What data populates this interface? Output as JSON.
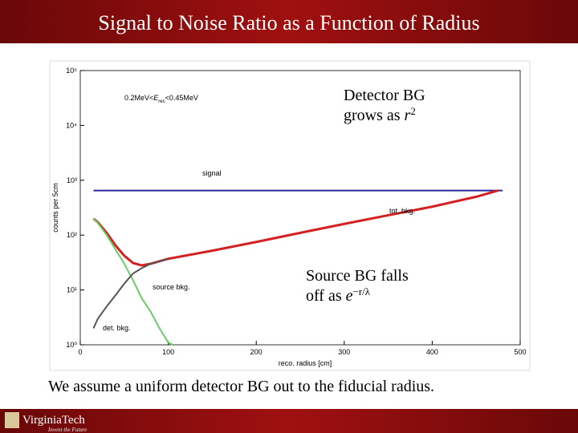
{
  "header": {
    "title": "Signal to Noise Ratio as a Function of Radius"
  },
  "chart_data": {
    "type": "line",
    "cut": [
      "0.2MeV<",
      "E",
      "rec",
      "<0.45MeV"
    ],
    "xlabel": "reco. radius [cm]",
    "ylabel": "counts per 5cm",
    "xlim": [
      0,
      500
    ],
    "xticks": [
      0,
      100,
      200,
      300,
      400,
      500
    ],
    "ylim": [
      1,
      100000
    ],
    "ylog": true,
    "yticks": [
      {
        "value": 1,
        "label": "10⁰"
      },
      {
        "value": 10,
        "label": "10¹"
      },
      {
        "value": 100,
        "label": "10²"
      },
      {
        "value": 1000,
        "label": "10³"
      },
      {
        "value": 10000,
        "label": "10⁴"
      },
      {
        "value": 100000,
        "label": "10⁵"
      }
    ],
    "series": [
      {
        "name": "signal",
        "color": "#2828a0",
        "x": [
          15,
          480
        ],
        "values": [
          650,
          650
        ]
      },
      {
        "name": "tot. bkg.",
        "color": "#d42020",
        "x": [
          15,
          20,
          30,
          40,
          50,
          60,
          70,
          80,
          100,
          150,
          200,
          250,
          300,
          350,
          400,
          450,
          475
        ],
        "values": [
          200,
          170,
          110,
          65,
          42,
          31,
          28,
          30,
          37,
          52,
          75,
          110,
          160,
          230,
          330,
          500,
          650
        ]
      },
      {
        "name": "source bkg.",
        "color": "#66d066",
        "x": [
          15,
          20,
          30,
          40,
          50,
          60,
          70,
          80,
          90,
          100,
          105
        ],
        "values": [
          200,
          165,
          100,
          55,
          30,
          15,
          7,
          4,
          2,
          1.1,
          1
        ]
      },
      {
        "name": "det. bkg.",
        "color": "#555555",
        "x": [
          15,
          20,
          30,
          40,
          50,
          60,
          70,
          80,
          100
        ],
        "values": [
          2,
          3,
          5,
          8,
          13,
          20,
          25,
          30,
          37
        ]
      }
    ],
    "callouts": [
      {
        "lines": [
          {
            "text": "Detector BG"
          },
          {
            "text": "grows as ",
            "italic": "r",
            "sup": "2"
          }
        ]
      },
      {
        "lines": [
          {
            "text": "Source BG falls"
          },
          {
            "text": "off as ",
            "italic": "e",
            "sup": "−r/λ"
          }
        ]
      }
    ]
  },
  "footer": {
    "note": "We assume a uniform detector BG out to the fiducial radius.",
    "logo": "VirginiaTech",
    "tagline": "Invent the Future"
  }
}
